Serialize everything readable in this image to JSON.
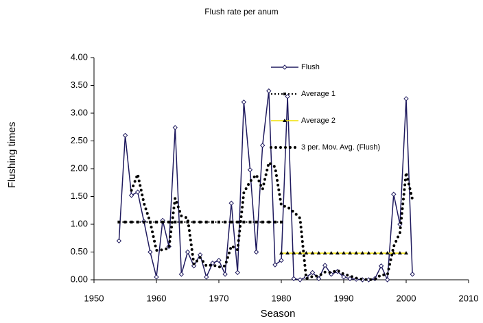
{
  "chart_data": {
    "type": "line",
    "title": "Flush rate per anum",
    "xlabel": "Season",
    "ylabel": "Flushing times",
    "xlim": [
      1950,
      2010
    ],
    "xticks": [
      1950,
      1960,
      1970,
      1980,
      1990,
      2000,
      2010
    ],
    "ylim": [
      0,
      4
    ],
    "yticks": [
      {
        "value": 0,
        "label": "0.00"
      },
      {
        "value": 0.5,
        "label": "0.50"
      },
      {
        "value": 1,
        "label": "1.00"
      },
      {
        "value": 1.5,
        "label": "1.50"
      },
      {
        "value": 2,
        "label": "2.00"
      },
      {
        "value": 2.5,
        "label": "2.50"
      },
      {
        "value": 3,
        "label": "3.00"
      },
      {
        "value": 3.5,
        "label": "3.50"
      },
      {
        "value": 4,
        "label": "4.00"
      }
    ],
    "legend": "upper right",
    "series": [
      {
        "name": "Flush",
        "color": "#1f1a5e",
        "style": "solid",
        "marker": "diamond",
        "x": [
          1954,
          1955,
          1956,
          1957,
          1958,
          1959,
          1960,
          1961,
          1962,
          1963,
          1964,
          1965,
          1966,
          1967,
          1968,
          1969,
          1970,
          1971,
          1972,
          1973,
          1974,
          1975,
          1976,
          1977,
          1978,
          1979,
          1980,
          1981,
          1982,
          1983,
          1984,
          1985,
          1986,
          1987,
          1988,
          1989,
          1990,
          1991,
          1992,
          1993,
          1994,
          1995,
          1996,
          1997,
          1998,
          1999,
          2000,
          2001
        ],
        "values": [
          0.7,
          2.6,
          1.52,
          1.58,
          1.05,
          0.5,
          0.05,
          1.07,
          0.6,
          2.74,
          0.1,
          0.5,
          0.25,
          0.45,
          0.05,
          0.3,
          0.35,
          0.1,
          1.38,
          0.13,
          3.2,
          1.98,
          0.5,
          2.42,
          3.4,
          0.27,
          0.35,
          3.3,
          0.02,
          0.0,
          0.05,
          0.13,
          0.02,
          0.26,
          0.1,
          0.15,
          0.05,
          0.02,
          0.01,
          0.0,
          0.0,
          0.02,
          0.25,
          0.0,
          1.54,
          1.0,
          3.26,
          0.1
        ]
      },
      {
        "name": "Average 1",
        "color": "#000000",
        "style": "dotted",
        "marker": "square",
        "x": [
          1954,
          1955,
          1956,
          1957,
          1958,
          1959,
          1960,
          1961,
          1962,
          1963,
          1964,
          1965,
          1966,
          1967,
          1968,
          1969,
          1970,
          1971,
          1972,
          1973,
          1974,
          1975,
          1976,
          1977,
          1978,
          1979,
          1980
        ],
        "values": [
          1.04,
          1.04,
          1.04,
          1.04,
          1.04,
          1.04,
          1.04,
          1.04,
          1.04,
          1.04,
          1.04,
          1.04,
          1.04,
          1.04,
          1.04,
          1.04,
          1.04,
          1.04,
          1.04,
          1.04,
          1.04,
          1.04,
          1.04,
          1.04,
          1.04,
          1.04,
          1.04
        ]
      },
      {
        "name": "Average 2",
        "color": "#f0e000",
        "style": "solid",
        "marker": "triangle",
        "x": [
          1980,
          1981,
          1982,
          1983,
          1984,
          1985,
          1986,
          1987,
          1988,
          1989,
          1990,
          1991,
          1992,
          1993,
          1994,
          1995,
          1996,
          1997,
          1998,
          1999,
          2000
        ],
        "values": [
          0.48,
          0.48,
          0.48,
          0.48,
          0.48,
          0.48,
          0.48,
          0.48,
          0.48,
          0.48,
          0.48,
          0.48,
          0.48,
          0.48,
          0.48,
          0.48,
          0.48,
          0.48,
          0.48,
          0.48,
          0.48
        ]
      },
      {
        "name": "3 per. Mov. Avg. (Flush)",
        "color": "#000000",
        "style": "bigdots",
        "marker": "none",
        "x": [
          1956,
          1957,
          1958,
          1959,
          1960,
          1961,
          1962,
          1963,
          1964,
          1965,
          1966,
          1967,
          1968,
          1969,
          1970,
          1971,
          1972,
          1973,
          1974,
          1975,
          1976,
          1977,
          1978,
          1979,
          1980,
          1981,
          1982,
          1983,
          1984,
          1985,
          1986,
          1987,
          1988,
          1989,
          1990,
          1991,
          1992,
          1993,
          1994,
          1995,
          1996,
          1997,
          1998,
          1999,
          2000,
          2001
        ],
        "values": [
          1.61,
          1.9,
          1.38,
          1.04,
          0.53,
          0.54,
          0.57,
          1.47,
          1.15,
          1.11,
          0.28,
          0.4,
          0.25,
          0.27,
          0.23,
          0.25,
          0.61,
          0.54,
          1.57,
          1.77,
          1.89,
          1.63,
          2.11,
          2.03,
          1.34,
          1.31,
          1.22,
          1.11,
          0.02,
          0.06,
          0.07,
          0.14,
          0.13,
          0.17,
          0.1,
          0.07,
          0.03,
          0.01,
          0.0,
          0.01,
          0.09,
          0.09,
          0.6,
          0.85,
          1.93,
          1.45
        ]
      }
    ]
  }
}
